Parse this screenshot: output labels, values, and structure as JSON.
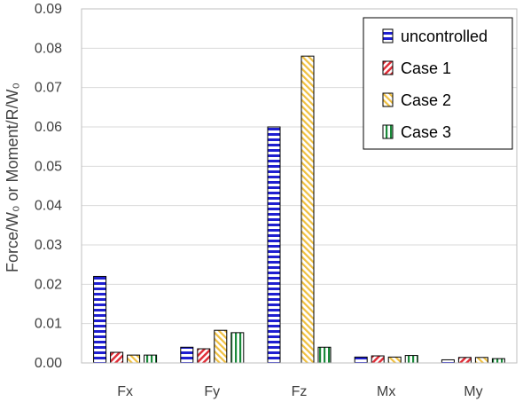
{
  "chart_data": {
    "type": "bar",
    "ylabel": "Force/W₀ or Moment/R/W₀",
    "ylim": [
      0,
      0.09
    ],
    "yticks": [
      "0.00",
      "0.01",
      "0.02",
      "0.03",
      "0.04",
      "0.05",
      "0.06",
      "0.07",
      "0.08",
      "0.09"
    ],
    "categories": [
      "Fx",
      "Fy",
      "Fz",
      "Mx",
      "My"
    ],
    "grid": true,
    "legend_position": "top-right",
    "series": [
      {
        "name": "uncontrolled",
        "color": "#1f1fd0",
        "pattern": "horizontal-stripes",
        "values": [
          0.022,
          0.004,
          0.06,
          0.0015,
          0.0008
        ]
      },
      {
        "name": "Case 1",
        "color": "#e0303a",
        "pattern": "diagonal-hatch",
        "values": [
          0.0027,
          0.0036,
          0.0,
          0.0018,
          0.0014
        ]
      },
      {
        "name": "Case 2",
        "color": "#f0c040",
        "pattern": "diagonal-hatch",
        "values": [
          0.002,
          0.0083,
          0.078,
          0.0015,
          0.0014
        ]
      },
      {
        "name": "Case 3",
        "color": "#1a8a3a",
        "pattern": "vertical-stripes",
        "values": [
          0.002,
          0.0077,
          0.004,
          0.0019,
          0.0011
        ]
      }
    ]
  }
}
